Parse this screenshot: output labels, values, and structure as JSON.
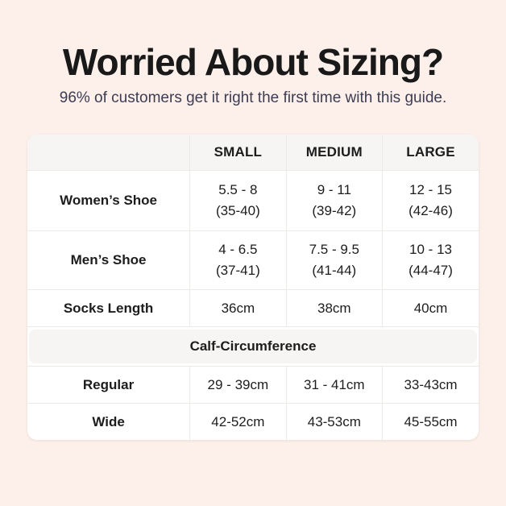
{
  "page": {
    "title": "Worried About Sizing?",
    "subtitle": "96% of customers get it right the first time with this guide.",
    "background_color": "#fdf0ea"
  },
  "colors": {
    "title_text": "#191919",
    "subtitle_text": "#3c3c52",
    "table_background": "#ffffff",
    "header_row_background": "#f6f5f3",
    "table_border": "#eceae7",
    "table_text": "#1d1d1d"
  },
  "sizing_table": {
    "column_headers": [
      "SMALL",
      "MEDIUM",
      "LARGE"
    ],
    "rows": [
      {
        "label": "Women’s Shoe",
        "cells": [
          {
            "main": "5.5 - 8",
            "sub": "(35-40)"
          },
          {
            "main": "9 - 11",
            "sub": "(39-42)"
          },
          {
            "main": "12 - 15",
            "sub": "(42-46)"
          }
        ]
      },
      {
        "label": "Men’s Shoe",
        "cells": [
          {
            "main": "4 - 6.5",
            "sub": "(37-41)"
          },
          {
            "main": "7.5 - 9.5",
            "sub": "(41-44)"
          },
          {
            "main": "10 - 13",
            "sub": "(44-47)"
          }
        ]
      },
      {
        "label": "Socks Length",
        "cells": [
          {
            "main": "36cm"
          },
          {
            "main": "38cm"
          },
          {
            "main": "40cm"
          }
        ]
      }
    ],
    "section_header": "Calf-Circumference",
    "section_rows": [
      {
        "label": "Regular",
        "cells": [
          {
            "main": "29 - 39cm"
          },
          {
            "main": "31 - 41cm"
          },
          {
            "main": "33-43cm"
          }
        ]
      },
      {
        "label": "Wide",
        "cells": [
          {
            "main": "42-52cm"
          },
          {
            "main": "43-53cm"
          },
          {
            "main": "45-55cm"
          }
        ]
      }
    ]
  }
}
